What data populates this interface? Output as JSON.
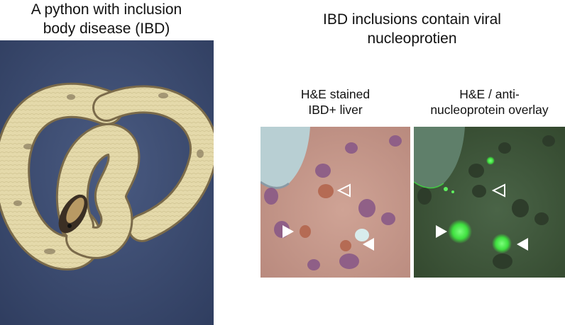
{
  "left_figure": {
    "title_line1": "A python with inclusion",
    "title_line2": "body disease (IBD)",
    "image_icon": "ball-python-photo"
  },
  "right_figure": {
    "title_line1": "IBD inclusions contain viral",
    "title_line2": "nucleoprotien",
    "panel_he": {
      "label_line1": "H&E stained",
      "label_line2": "IBD+ liver",
      "image_icon": "he-stained-liver-micrograph"
    },
    "panel_overlay": {
      "label_line1": "H&E / anti-",
      "label_line2": "nucleoprotein overlay",
      "image_icon": "fluorescence-overlay-micrograph"
    }
  },
  "colors": {
    "snake_background": "#3e4e73",
    "snake_body": "#e3d8a8",
    "he_tissue": "#c89a8d",
    "overlay_tissue": "#3f5a3c",
    "fluorescence": "#4ff04f",
    "arrowhead": "#ffffff"
  }
}
